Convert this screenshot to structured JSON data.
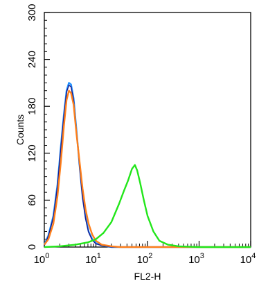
{
  "chart_data": {
    "type": "line",
    "xlabel": "FL2-H",
    "ylabel": "Counts",
    "xscale": "log",
    "xlim": [
      1,
      10000
    ],
    "ylim": [
      0,
      300
    ],
    "grid": false,
    "x_tick_labels": [
      {
        "base": "10",
        "exp": "0"
      },
      {
        "base": "10",
        "exp": "1"
      },
      {
        "base": "10",
        "exp": "2"
      },
      {
        "base": "10",
        "exp": "3"
      },
      {
        "base": "10",
        "exp": "4"
      }
    ],
    "y_ticks": [
      "0",
      "60",
      "120",
      "180",
      "240",
      "300"
    ],
    "series": [
      {
        "color": "#1e90ff",
        "points": [
          [
            1.0,
            3
          ],
          [
            1.2,
            15
          ],
          [
            1.5,
            40
          ],
          [
            1.8,
            80
          ],
          [
            2.1,
            130
          ],
          [
            2.4,
            170
          ],
          [
            2.7,
            200
          ],
          [
            3.0,
            210
          ],
          [
            3.3,
            208
          ],
          [
            3.7,
            190
          ],
          [
            4.2,
            150
          ],
          [
            4.8,
            105
          ],
          [
            5.5,
            65
          ],
          [
            6.3,
            38
          ],
          [
            7.2,
            20
          ],
          [
            8.5,
            10
          ],
          [
            10,
            5
          ],
          [
            13,
            2
          ],
          [
            20,
            0
          ],
          [
            10000,
            0
          ]
        ]
      },
      {
        "color": "#1a1a8c",
        "points": [
          [
            1.0,
            2
          ],
          [
            1.2,
            14
          ],
          [
            1.5,
            38
          ],
          [
            1.8,
            78
          ],
          [
            2.1,
            128
          ],
          [
            2.4,
            168
          ],
          [
            2.7,
            198
          ],
          [
            3.0,
            207
          ],
          [
            3.3,
            205
          ],
          [
            3.7,
            188
          ],
          [
            4.2,
            148
          ],
          [
            4.8,
            103
          ],
          [
            5.5,
            63
          ],
          [
            6.3,
            36
          ],
          [
            7.2,
            19
          ],
          [
            8.5,
            9
          ],
          [
            10,
            4
          ],
          [
            13,
            2
          ],
          [
            20,
            0
          ],
          [
            10000,
            0
          ]
        ]
      },
      {
        "color": "#ff7f1a",
        "points": [
          [
            1.0,
            3
          ],
          [
            1.2,
            10
          ],
          [
            1.5,
            30
          ],
          [
            1.8,
            65
          ],
          [
            2.1,
            110
          ],
          [
            2.4,
            155
          ],
          [
            2.7,
            188
          ],
          [
            3.0,
            200
          ],
          [
            3.3,
            197
          ],
          [
            3.7,
            182
          ],
          [
            4.2,
            145
          ],
          [
            4.8,
            110
          ],
          [
            5.5,
            75
          ],
          [
            6.3,
            48
          ],
          [
            7.2,
            30
          ],
          [
            8.5,
            16
          ],
          [
            10,
            8
          ],
          [
            13,
            3
          ],
          [
            20,
            1
          ],
          [
            30,
            0
          ],
          [
            10000,
            0
          ]
        ]
      },
      {
        "color": "#22e61a",
        "points": [
          [
            1.0,
            0
          ],
          [
            2,
            1
          ],
          [
            4,
            3
          ],
          [
            7,
            6
          ],
          [
            10,
            10
          ],
          [
            14,
            18
          ],
          [
            20,
            32
          ],
          [
            28,
            55
          ],
          [
            35,
            72
          ],
          [
            42,
            85
          ],
          [
            50,
            100
          ],
          [
            57,
            105
          ],
          [
            63,
            98
          ],
          [
            72,
            82
          ],
          [
            85,
            60
          ],
          [
            100,
            40
          ],
          [
            130,
            20
          ],
          [
            170,
            8
          ],
          [
            250,
            3
          ],
          [
            400,
            1
          ],
          [
            1000,
            0
          ],
          [
            10000,
            0
          ]
        ]
      }
    ]
  }
}
